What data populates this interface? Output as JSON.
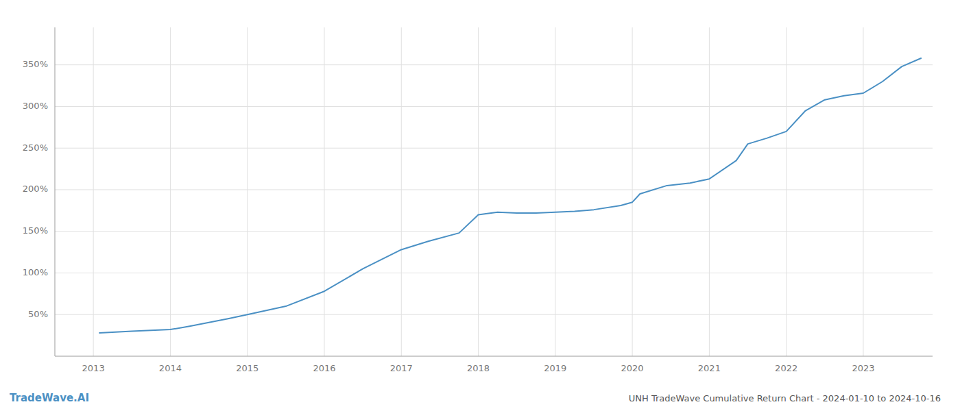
{
  "chart_data": {
    "type": "line",
    "title": "UNH TradeWave Cumulative Return Chart - 2024-01-10 to 2024-10-16",
    "annotations": [
      "TradeWave.AI"
    ],
    "x": [
      2013.08,
      2013.5,
      2014.0,
      2014.25,
      2014.75,
      2015.0,
      2015.5,
      2016.0,
      2016.5,
      2017.0,
      2017.35,
      2017.75,
      2018.0,
      2018.25,
      2018.5,
      2018.75,
      2019.0,
      2019.25,
      2019.5,
      2019.85,
      2020.0,
      2020.1,
      2020.45,
      2020.75,
      2021.0,
      2021.35,
      2021.5,
      2021.75,
      2022.0,
      2022.25,
      2022.5,
      2022.75,
      2023.0,
      2023.25,
      2023.5,
      2023.75
    ],
    "values": [
      28,
      30,
      32,
      36,
      45,
      50,
      60,
      78,
      105,
      128,
      138,
      148,
      170,
      173,
      172,
      172,
      173,
      174,
      176,
      181,
      185,
      195,
      205,
      208,
      213,
      235,
      255,
      262,
      270,
      295,
      308,
      313,
      316,
      330,
      348,
      358
    ],
    "color": "#4a90c4",
    "xlim": [
      2012.5,
      2023.9
    ],
    "xticks": [
      2013,
      2014,
      2015,
      2016,
      2017,
      2018,
      2019,
      2020,
      2021,
      2022,
      2023
    ],
    "ylim": [
      0,
      395
    ],
    "yticks": [
      {
        "value": 50,
        "label": "50%"
      },
      {
        "value": 100,
        "label": "100%"
      },
      {
        "value": 150,
        "label": "150%"
      },
      {
        "value": 200,
        "label": "200%"
      },
      {
        "value": 250,
        "label": "250%"
      },
      {
        "value": 300,
        "label": "300%"
      },
      {
        "value": 350,
        "label": "350%"
      }
    ],
    "grid": true
  }
}
